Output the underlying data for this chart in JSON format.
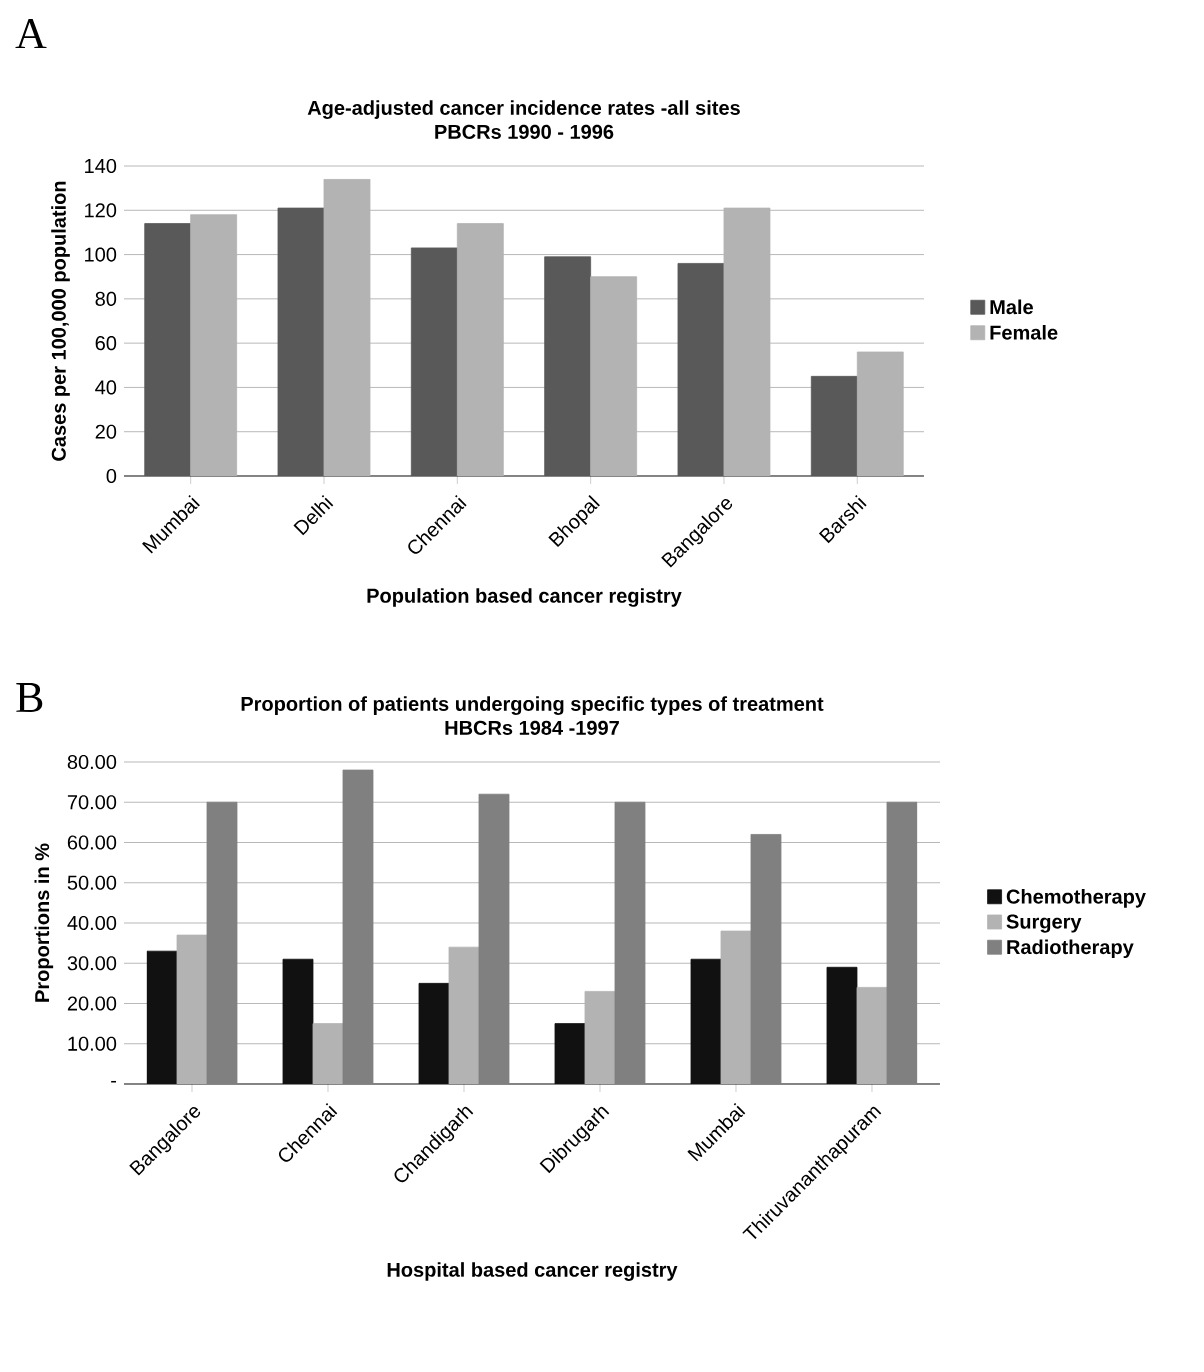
{
  "chart_data": [
    {
      "type": "bar",
      "title": "Age-adjusted cancer incidence rates -all sites\nPBCRs 1990 - 1996",
      "xlabel": "Population based cancer registry",
      "ylabel": "Cases per 100,000 population",
      "annotations": [
        "A"
      ],
      "categories": [
        "Mumbai",
        "Delhi",
        "Chennai",
        "Bhopal",
        "Bangalore",
        "Barshi"
      ],
      "series": [
        {
          "name": "Male",
          "color": "#595959",
          "values": [
            114,
            121,
            103,
            99,
            96,
            45
          ]
        },
        {
          "name": "Female",
          "color": "#b3b3b3",
          "values": [
            118,
            134,
            114,
            90,
            121,
            56
          ]
        }
      ],
      "ylim": [
        0,
        140
      ],
      "yticks": [
        0,
        20,
        40,
        60,
        80,
        100,
        120,
        140
      ],
      "grid": "y",
      "legend": "right"
    },
    {
      "type": "bar",
      "title": "Proportion of patients undergoing specific types of treatment\nHBCRs 1984 -1997",
      "xlabel": "Hospital based cancer registry",
      "ylabel": "Proportions in %",
      "annotations": [
        "B"
      ],
      "categories": [
        "Bangalore",
        "Chennai",
        "Chandigarh",
        "Dibrugarh",
        "Mumbai",
        "Thiruvananthapuram"
      ],
      "series": [
        {
          "name": "Chemotherapy",
          "color": "#111111",
          "values": [
            33,
            31,
            25,
            15,
            31,
            29
          ]
        },
        {
          "name": "Surgery",
          "color": "#b3b3b3",
          "values": [
            37,
            15,
            34,
            23,
            38,
            24
          ]
        },
        {
          "name": "Radiotherapy",
          "color": "#808080",
          "values": [
            70,
            78,
            72,
            70,
            62,
            70
          ]
        }
      ],
      "ylim": [
        0,
        80
      ],
      "yticks": [
        {
          "value": 0,
          "label": "-"
        },
        {
          "value": 10,
          "label": "10.00"
        },
        {
          "value": 20,
          "label": "20.00"
        },
        {
          "value": 30,
          "label": "30.00"
        },
        {
          "value": 40,
          "label": "40.00"
        },
        {
          "value": 50,
          "label": "50.00"
        },
        {
          "value": 60,
          "label": "60.00"
        },
        {
          "value": 70,
          "label": "70.00"
        },
        {
          "value": 80,
          "label": "80.00"
        }
      ],
      "grid": "y",
      "legend": "right"
    }
  ]
}
